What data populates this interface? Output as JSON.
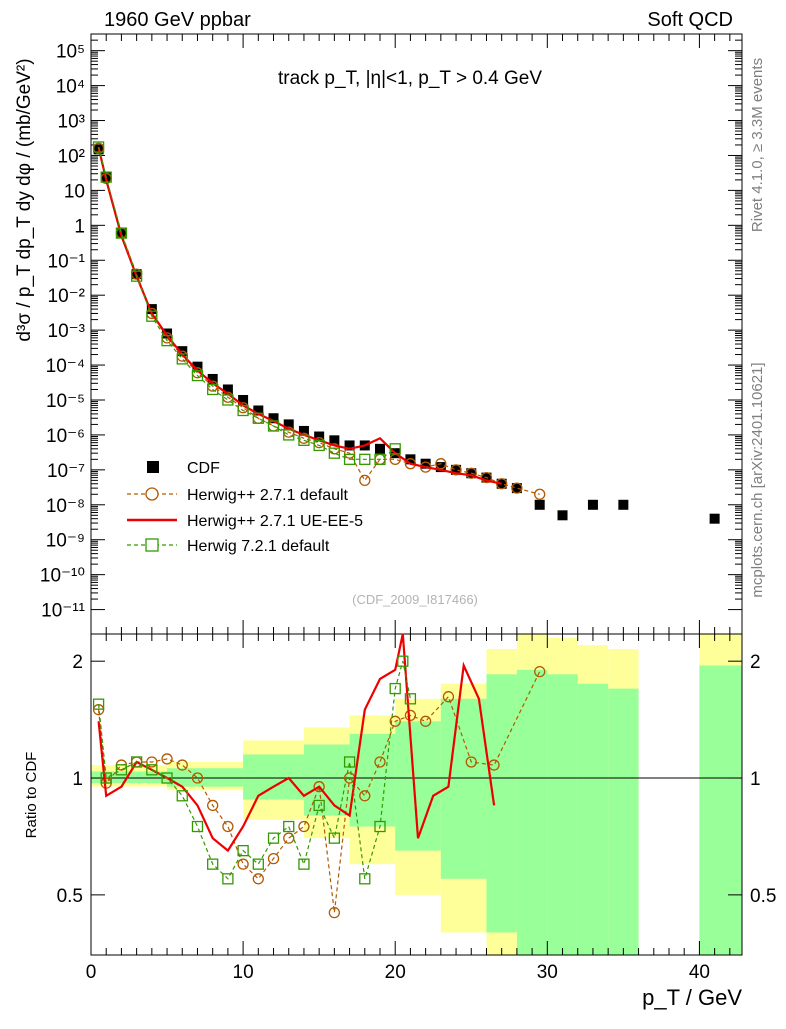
{
  "header": {
    "left": "1960 GeV ppbar",
    "right": "Soft QCD"
  },
  "side_labels": {
    "rivet": "Rivet 4.1.0, ≥ 3.3M events",
    "mcplots": "mcplots.cern.ch [arXiv:2401.10621]"
  },
  "watermark": "(CDF_2009_I817466)",
  "chart_data": [
    {
      "type": "scatter",
      "panel": "main",
      "title": "track p_T, |η|<1, p_T > 0.4 GeV",
      "ylabel": "d³σ / p_T dp_T dy dφ / (mb/GeV²)",
      "yscale": "log",
      "ylim": [
        2e-12,
        300000.0
      ],
      "xlim": [
        0,
        42.8
      ],
      "y_tick_labels": [
        "10⁻¹¹",
        "10⁻¹⁰",
        "10⁻⁹",
        "10⁻⁸",
        "10⁻⁷",
        "10⁻⁶",
        "10⁻⁵",
        "10⁻⁴",
        "10⁻³",
        "10⁻²",
        "10⁻¹",
        "1",
        "10",
        "10²",
        "10³",
        "10⁴",
        "10⁵"
      ],
      "legend_position": "bottom-left",
      "series": [
        {
          "name": "CDF",
          "color": "#000000",
          "marker": "square",
          "x": [
            0.5,
            1.0,
            2.0,
            3.0,
            4.0,
            5.0,
            6.0,
            7.0,
            8.0,
            9.0,
            10.0,
            11.0,
            12.0,
            13.0,
            14.0,
            15.0,
            16.0,
            17.0,
            18.0,
            19.0,
            20.0,
            21.0,
            22.0,
            23.0,
            24.0,
            25.0,
            26.0,
            27.0,
            28.0,
            29.5,
            31.0,
            33.0,
            35.0,
            41.0
          ],
          "y": [
            150,
            25,
            0.6,
            0.04,
            0.004,
            0.0008,
            0.00025,
            9e-05,
            4e-05,
            2e-05,
            1e-05,
            5e-06,
            3e-06,
            2e-06,
            1.3e-06,
            9e-07,
            7e-07,
            5e-07,
            5e-07,
            4e-07,
            3e-07,
            2e-07,
            1.5e-07,
            1.2e-07,
            1e-07,
            8e-08,
            6e-08,
            4e-08,
            3e-08,
            1e-08,
            5e-09,
            1e-08,
            1e-08,
            4e-09
          ]
        },
        {
          "name": "Herwig++ 2.7.1 default",
          "color": "#b35900",
          "marker": "circle-open",
          "x": [
            0.5,
            1.0,
            2.0,
            3.0,
            4.0,
            5.0,
            6.0,
            7.0,
            8.0,
            9.0,
            10.0,
            11.0,
            12.0,
            13.0,
            14.0,
            15.0,
            16.0,
            17.0,
            18.0,
            19.0,
            20.0,
            21.0,
            22.0,
            23.0,
            24.0,
            25.0,
            26.0,
            27.0,
            28.0,
            29.5
          ],
          "y": [
            160,
            22,
            0.6,
            0.04,
            0.003,
            0.0006,
            0.00018,
            6e-05,
            2.5e-05,
            1.2e-05,
            6e-06,
            3e-06,
            1.8e-06,
            1.2e-06,
            8e-07,
            6e-07,
            4e-07,
            3e-07,
            5e-08,
            2e-07,
            2e-07,
            1.5e-07,
            1.2e-07,
            1.5e-07,
            1e-07,
            8e-08,
            6e-08,
            4e-08,
            3e-08,
            2e-08
          ]
        },
        {
          "name": "Herwig++ 2.7.1 UE-EE-5",
          "color": "#ee0000",
          "marker": "line",
          "x": [
            0.5,
            1.0,
            2.0,
            3.0,
            4.0,
            5.0,
            6.0,
            7.0,
            8.0,
            9.0,
            10.0,
            11.0,
            12.0,
            13.0,
            14.0,
            15.0,
            16.0,
            17.0,
            18.0,
            19.0,
            20.0,
            21.0,
            22.0,
            23.0,
            24.0,
            25.0,
            26.0,
            27.0
          ],
          "y": [
            170,
            20,
            0.5,
            0.035,
            0.003,
            0.0007,
            0.0002,
            7e-05,
            3e-05,
            1.5e-05,
            7e-06,
            4e-06,
            2.5e-06,
            1.5e-06,
            1e-06,
            7e-07,
            5e-07,
            4e-07,
            5e-07,
            8e-07,
            3e-07,
            1.5e-07,
            1.2e-07,
            1e-07,
            8e-08,
            7e-08,
            5e-08,
            4e-08
          ]
        },
        {
          "name": "Herwig 7.2.1 default",
          "color": "#339900",
          "marker": "square-open",
          "x": [
            0.5,
            1.0,
            2.0,
            3.0,
            4.0,
            5.0,
            6.0,
            7.0,
            8.0,
            9.0,
            10.0,
            11.0,
            12.0,
            13.0,
            14.0,
            15.0,
            16.0,
            17.0,
            18.0,
            19.0,
            20.0
          ],
          "y": [
            175,
            24,
            0.6,
            0.035,
            0.0025,
            0.0005,
            0.00015,
            5e-05,
            2e-05,
            1e-05,
            5e-06,
            3e-06,
            1.8e-06,
            1e-06,
            7e-07,
            5e-07,
            3e-07,
            2e-07,
            2e-07,
            2e-07,
            4e-07
          ]
        }
      ]
    },
    {
      "type": "line",
      "panel": "ratio",
      "ylabel": "Ratio to CDF",
      "xlabel": "p_T / GeV",
      "xlim": [
        0,
        42.8
      ],
      "ylim": [
        0.35,
        2.35
      ],
      "x_tick_labels": [
        "0",
        "10",
        "20",
        "30",
        "40"
      ],
      "y_tick_labels": [
        "0.5",
        "1",
        "2"
      ],
      "uncertainty_bands": [
        {
          "name": "stat+syst",
          "color": "#ffff99",
          "bins": [
            [
              0,
              5,
              0.95,
              1.08
            ],
            [
              5,
              10,
              0.93,
              1.1
            ],
            [
              10,
              14,
              0.78,
              1.25
            ],
            [
              14,
              17,
              0.7,
              1.35
            ],
            [
              17,
              20,
              0.6,
              1.45
            ],
            [
              20,
              23,
              0.5,
              1.6
            ],
            [
              23,
              26,
              0.4,
              1.75
            ],
            [
              26,
              28,
              0.3,
              2.15
            ],
            [
              28,
              30,
              0.3,
              2.35
            ],
            [
              30,
              32,
              0.3,
              2.3
            ],
            [
              32,
              34,
              0.3,
              2.2
            ],
            [
              34,
              36,
              0.3,
              2.15
            ],
            [
              40,
              42.8,
              0.3,
              2.35
            ]
          ]
        },
        {
          "name": "stat",
          "color": "#99ff99",
          "bins": [
            [
              0,
              5,
              0.97,
              1.04
            ],
            [
              5,
              10,
              0.95,
              1.06
            ],
            [
              10,
              14,
              0.88,
              1.15
            ],
            [
              14,
              17,
              0.8,
              1.22
            ],
            [
              17,
              20,
              0.75,
              1.3
            ],
            [
              20,
              23,
              0.65,
              1.4
            ],
            [
              23,
              26,
              0.55,
              1.6
            ],
            [
              26,
              28,
              0.4,
              1.85
            ],
            [
              28,
              30,
              0.3,
              1.9
            ],
            [
              30,
              32,
              0.3,
              1.85
            ],
            [
              32,
              34,
              0.3,
              1.75
            ],
            [
              34,
              36,
              0.3,
              1.7
            ],
            [
              40,
              42.8,
              0.3,
              1.95
            ]
          ]
        }
      ],
      "reference_line": 1,
      "series": [
        {
          "name": "Herwig++ 2.7.1 default",
          "color": "#b35900",
          "x": [
            0.5,
            1.0,
            2.0,
            3.0,
            4.0,
            5.0,
            6.0,
            7.0,
            8.0,
            9.0,
            10.0,
            11.0,
            12.0,
            13.0,
            14.0,
            15.0,
            16.0,
            17.0,
            18.0,
            19.0,
            20.0,
            21.0,
            22.0,
            23.5,
            25.0,
            26.5,
            29.5
          ],
          "y": [
            1.5,
            0.97,
            1.08,
            1.1,
            1.1,
            1.12,
            1.08,
            1.0,
            0.85,
            0.75,
            0.6,
            0.55,
            0.62,
            0.7,
            0.75,
            0.95,
            0.45,
            1.0,
            0.9,
            1.1,
            1.4,
            1.45,
            1.4,
            1.62,
            1.1,
            1.08,
            1.88
          ]
        },
        {
          "name": "Herwig++ 2.7.1 UE-EE-5",
          "color": "#ee0000",
          "x": [
            0.5,
            1.0,
            2.0,
            3.0,
            4.0,
            5.0,
            6.0,
            7.0,
            8.0,
            9.0,
            10.0,
            11.0,
            12.0,
            13.0,
            14.0,
            15.0,
            16.0,
            17.0,
            18.0,
            19.0,
            20.0,
            20.5,
            21.5,
            22.5,
            23.5,
            24.5,
            25.5,
            26.5
          ],
          "y": [
            1.4,
            0.9,
            0.95,
            1.1,
            1.05,
            1.0,
            0.95,
            0.85,
            0.7,
            0.65,
            0.75,
            0.9,
            0.95,
            1.0,
            0.9,
            0.95,
            0.85,
            0.8,
            1.5,
            1.8,
            1.9,
            2.4,
            0.7,
            0.9,
            0.95,
            1.95,
            1.6,
            0.85
          ]
        },
        {
          "name": "Herwig 7.2.1 default",
          "color": "#339900",
          "x": [
            0.5,
            1.0,
            2.0,
            3.0,
            4.0,
            5.0,
            6.0,
            7.0,
            8.0,
            9.0,
            10.0,
            11.0,
            12.0,
            13.0,
            14.0,
            15.0,
            16.0,
            17.0,
            18.0,
            19.0,
            20.0,
            20.5,
            21.0
          ],
          "y": [
            1.55,
            1.0,
            1.05,
            1.1,
            1.05,
            1.0,
            0.9,
            0.75,
            0.6,
            0.55,
            0.65,
            0.6,
            0.7,
            0.75,
            0.6,
            0.85,
            0.7,
            1.1,
            0.55,
            0.75,
            1.7,
            2.0,
            1.6
          ]
        }
      ]
    }
  ]
}
